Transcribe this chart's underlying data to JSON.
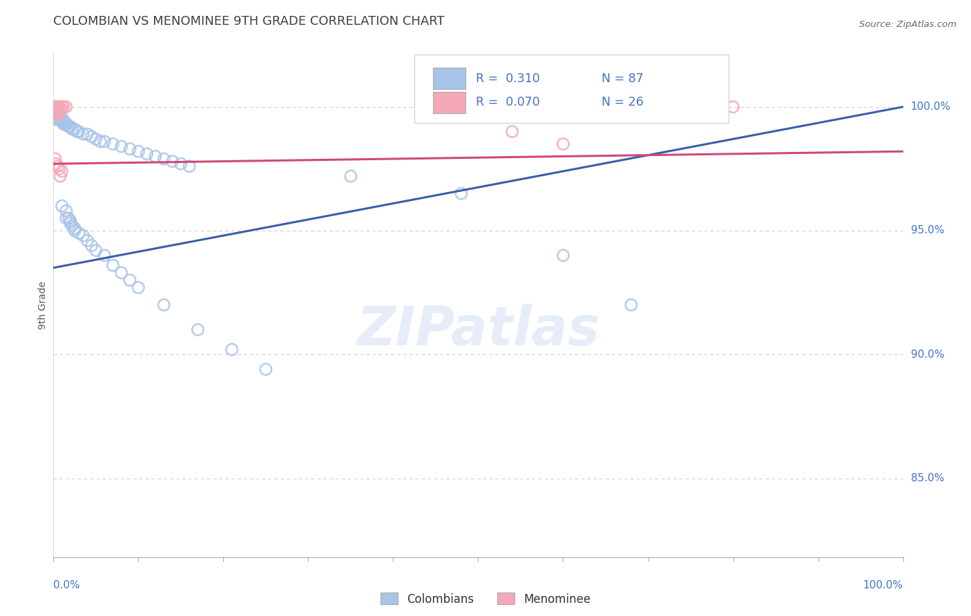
{
  "title": "COLOMBIAN VS MENOMINEE 9TH GRADE CORRELATION CHART",
  "source_text": "Source: ZipAtlas.com",
  "ylabel": "9th Grade",
  "ytick_labels": [
    "100.0%",
    "95.0%",
    "90.0%",
    "85.0%"
  ],
  "ytick_values": [
    1.0,
    0.95,
    0.9,
    0.85
  ],
  "xmin": 0.0,
  "xmax": 1.0,
  "ymin": 0.818,
  "ymax": 1.022,
  "blue_color": "#a8c4e8",
  "pink_color": "#f4a8b8",
  "blue_line_color": "#3a5faa",
  "pink_line_color": "#d04878",
  "title_color": "#404040",
  "axis_label_color": "#4472c4",
  "grid_color": "#cccccc",
  "blue_points": [
    [
      0.002,
      1.0
    ],
    [
      0.003,
      0.999
    ],
    [
      0.004,
      0.999
    ],
    [
      0.005,
      0.999
    ],
    [
      0.001,
      0.998
    ],
    [
      0.002,
      0.998
    ],
    [
      0.003,
      0.998
    ],
    [
      0.004,
      0.998
    ],
    [
      0.005,
      0.998
    ],
    [
      0.006,
      0.998
    ],
    [
      0.001,
      0.997
    ],
    [
      0.002,
      0.997
    ],
    [
      0.003,
      0.997
    ],
    [
      0.004,
      0.997
    ],
    [
      0.005,
      0.997
    ],
    [
      0.001,
      0.996
    ],
    [
      0.002,
      0.996
    ],
    [
      0.003,
      0.996
    ],
    [
      0.004,
      0.996
    ],
    [
      0.005,
      0.996
    ],
    [
      0.001,
      0.995
    ],
    [
      0.002,
      0.995
    ],
    [
      0.003,
      0.995
    ],
    [
      0.004,
      0.995
    ],
    [
      0.005,
      0.995
    ],
    [
      0.007,
      0.997
    ],
    [
      0.008,
      0.997
    ],
    [
      0.008,
      0.996
    ],
    [
      0.009,
      0.996
    ],
    [
      0.007,
      0.995
    ],
    [
      0.008,
      0.995
    ],
    [
      0.009,
      0.995
    ],
    [
      0.01,
      0.995
    ],
    [
      0.011,
      0.995
    ],
    [
      0.01,
      0.994
    ],
    [
      0.011,
      0.994
    ],
    [
      0.012,
      0.994
    ],
    [
      0.013,
      0.994
    ],
    [
      0.012,
      0.993
    ],
    [
      0.013,
      0.993
    ],
    [
      0.015,
      0.993
    ],
    [
      0.016,
      0.993
    ],
    [
      0.018,
      0.992
    ],
    [
      0.02,
      0.992
    ],
    [
      0.022,
      0.991
    ],
    [
      0.025,
      0.991
    ],
    [
      0.028,
      0.99
    ],
    [
      0.03,
      0.99
    ],
    [
      0.035,
      0.989
    ],
    [
      0.04,
      0.989
    ],
    [
      0.045,
      0.988
    ],
    [
      0.05,
      0.987
    ],
    [
      0.055,
      0.986
    ],
    [
      0.06,
      0.986
    ],
    [
      0.07,
      0.985
    ],
    [
      0.08,
      0.984
    ],
    [
      0.09,
      0.983
    ],
    [
      0.1,
      0.982
    ],
    [
      0.11,
      0.981
    ],
    [
      0.12,
      0.98
    ],
    [
      0.13,
      0.979
    ],
    [
      0.14,
      0.978
    ],
    [
      0.15,
      0.977
    ],
    [
      0.16,
      0.976
    ],
    [
      0.01,
      0.96
    ],
    [
      0.015,
      0.958
    ],
    [
      0.015,
      0.955
    ],
    [
      0.018,
      0.955
    ],
    [
      0.02,
      0.954
    ],
    [
      0.02,
      0.953
    ],
    [
      0.022,
      0.952
    ],
    [
      0.025,
      0.951
    ],
    [
      0.025,
      0.95
    ],
    [
      0.03,
      0.949
    ],
    [
      0.035,
      0.948
    ],
    [
      0.04,
      0.946
    ],
    [
      0.045,
      0.944
    ],
    [
      0.05,
      0.942
    ],
    [
      0.06,
      0.94
    ],
    [
      0.07,
      0.936
    ],
    [
      0.08,
      0.933
    ],
    [
      0.09,
      0.93
    ],
    [
      0.1,
      0.927
    ],
    [
      0.13,
      0.92
    ],
    [
      0.17,
      0.91
    ],
    [
      0.21,
      0.902
    ],
    [
      0.25,
      0.894
    ],
    [
      0.35,
      0.972
    ],
    [
      0.48,
      0.965
    ],
    [
      0.6,
      0.94
    ],
    [
      0.68,
      0.92
    ]
  ],
  "pink_points": [
    [
      0.002,
      1.0
    ],
    [
      0.005,
      1.0
    ],
    [
      0.007,
      1.0
    ],
    [
      0.01,
      1.0
    ],
    [
      0.012,
      1.0
    ],
    [
      0.015,
      1.0
    ],
    [
      0.003,
      0.999
    ],
    [
      0.006,
      0.999
    ],
    [
      0.009,
      0.999
    ],
    [
      0.003,
      0.998
    ],
    [
      0.006,
      0.998
    ],
    [
      0.002,
      0.997
    ],
    [
      0.005,
      0.997
    ],
    [
      0.002,
      0.979
    ],
    [
      0.003,
      0.977
    ],
    [
      0.005,
      0.976
    ],
    [
      0.007,
      0.975
    ],
    [
      0.01,
      0.974
    ],
    [
      0.008,
      0.972
    ],
    [
      0.46,
      1.0
    ],
    [
      0.49,
      0.999
    ],
    [
      0.5,
      0.998
    ],
    [
      0.52,
      0.997
    ],
    [
      0.54,
      0.99
    ],
    [
      0.6,
      0.985
    ],
    [
      0.8,
      1.0
    ]
  ],
  "blue_line_x": [
    0.0,
    1.0
  ],
  "blue_line_y": [
    0.935,
    1.0
  ],
  "pink_line_x": [
    0.0,
    1.0
  ],
  "pink_line_y": [
    0.977,
    0.982
  ]
}
